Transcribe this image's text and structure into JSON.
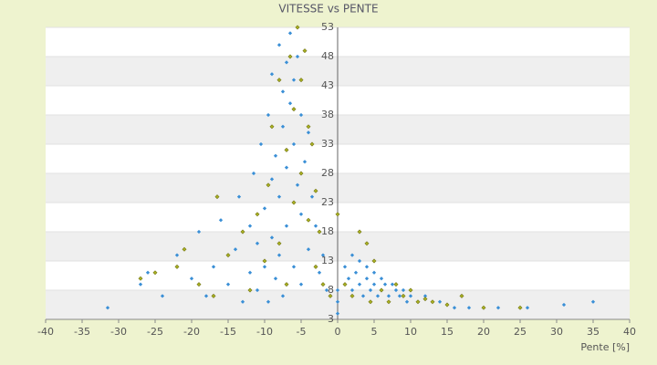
{
  "chart_data": {
    "type": "scatter",
    "title": "VITESSE vs PENTE",
    "x_label": "Pente [%]",
    "xlim": [
      -40,
      40
    ],
    "xticks": [
      -40,
      -35,
      -30,
      -25,
      -20,
      -15,
      -10,
      -5,
      0,
      5,
      10,
      15,
      20,
      25,
      30,
      35,
      40
    ],
    "ylim": [
      3,
      53
    ],
    "yticks": [
      3,
      8,
      13,
      18,
      23,
      28,
      33,
      38,
      43,
      48,
      53
    ],
    "grid": true,
    "series": [
      {
        "color": "#3a8fd6",
        "x": [
          -31.5,
          -27,
          -26,
          -24,
          -22,
          -20,
          -19,
          -18,
          -17,
          -16,
          -15,
          -14,
          -13.5,
          -13,
          -12,
          -12,
          -11.5,
          -11,
          -11,
          -10.5,
          -10,
          -10,
          -9.5,
          -9.5,
          -9,
          -9,
          -9,
          -8.5,
          -8.5,
          -8,
          -8,
          -8,
          -7.5,
          -7.5,
          -7.5,
          -7,
          -7,
          -7,
          -6.5,
          -6.5,
          -6,
          -6,
          -6,
          -5.5,
          -5.5,
          -5,
          -5,
          -5,
          -4.5,
          -4,
          -4,
          -3.5,
          -3,
          -2.5,
          -2,
          -1.5,
          0,
          0,
          0,
          1,
          1.5,
          2,
          2,
          2.5,
          3,
          3,
          3.5,
          4,
          4,
          4.5,
          5,
          5,
          5.5,
          6,
          6,
          6.5,
          7,
          7.5,
          8,
          8.5,
          9,
          9.5,
          10,
          11,
          12,
          14,
          16,
          18,
          22,
          26,
          31,
          35
        ],
        "values": [
          5,
          9,
          11,
          7,
          14,
          10,
          18,
          7,
          12,
          20,
          9,
          15,
          24,
          6,
          19,
          11,
          28,
          8,
          16,
          33,
          22,
          12,
          38,
          6,
          27,
          17,
          45,
          31,
          10,
          50,
          24,
          14,
          42,
          36,
          7,
          47,
          29,
          19,
          52,
          40,
          44,
          33,
          12,
          48,
          26,
          38,
          21,
          9,
          30,
          35,
          15,
          24,
          19,
          11,
          14,
          8,
          4,
          6,
          8,
          12,
          10,
          8,
          14,
          11,
          9,
          13,
          7,
          10,
          12,
          8,
          9,
          11,
          7,
          10,
          8,
          9,
          7,
          9,
          8,
          7,
          8,
          6,
          7,
          6,
          7,
          6,
          5,
          5,
          5,
          5,
          5.5,
          6
        ]
      },
      {
        "color": "#a8b020",
        "x": [
          -27,
          -25,
          -22,
          -21,
          -19,
          -17,
          -16.5,
          -15,
          -13,
          -12,
          -11,
          -10,
          -9.5,
          -9,
          -8,
          -8,
          -7,
          -7,
          -6.5,
          -6,
          -6,
          -5.5,
          -5,
          -5,
          -4.5,
          -4,
          -4,
          -3.5,
          -3,
          -3,
          -2.5,
          -2,
          -1,
          0,
          1,
          2,
          3,
          4,
          4.5,
          5,
          6,
          7,
          8,
          9,
          10,
          11,
          12,
          13,
          15,
          17,
          20,
          25
        ],
        "values": [
          10,
          11,
          12,
          15,
          9,
          7,
          24,
          14,
          18,
          8,
          21,
          13,
          26,
          36,
          16,
          44,
          32,
          9,
          48,
          23,
          39,
          53,
          44,
          28,
          49,
          36,
          20,
          33,
          25,
          12,
          18,
          9,
          7,
          21,
          9,
          7,
          18,
          16,
          6,
          13,
          8,
          6,
          9,
          7,
          8,
          6,
          6.5,
          6,
          5.5,
          7,
          5,
          5
        ]
      }
    ]
  }
}
